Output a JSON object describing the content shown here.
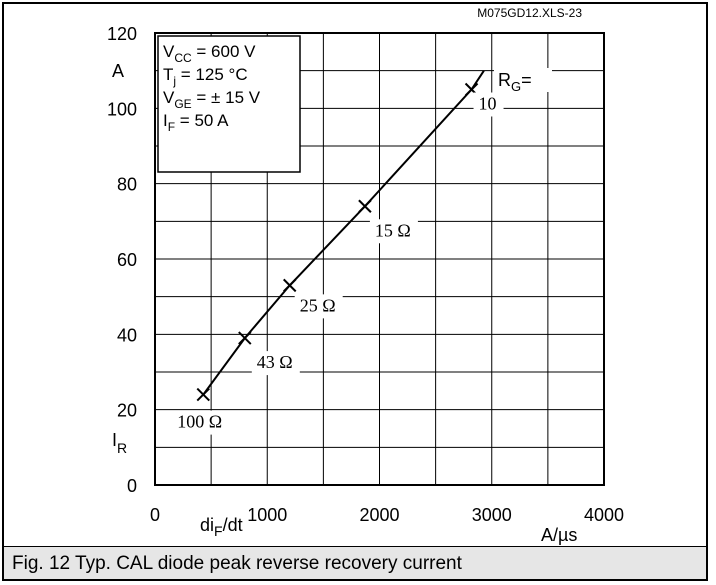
{
  "source_id": "M075GD12.XLS-23",
  "caption": "Fig. 12 Typ. CAL diode peak reverse recovery current",
  "conditions": [
    {
      "main": "V",
      "sub": "CC",
      "rest": " = 600 V"
    },
    {
      "main": "T",
      "sub": "j",
      "rest": " = 125 °C"
    },
    {
      "main": "V",
      "sub": "GE",
      "rest": " = ± 15 V"
    },
    {
      "main": "I",
      "sub": "F",
      "rest": " = 50 A"
    }
  ],
  "rg_label": {
    "main": "R",
    "sub": "G",
    "rest": "="
  },
  "chart_data": {
    "type": "line",
    "x_label_main": "di",
    "x_label_sub": "F",
    "x_label_rest": "/dt",
    "x_unit": "A/µs",
    "y_label_main": "I",
    "y_label_sub": "R",
    "y_unit": "A",
    "xlim": [
      0,
      4000
    ],
    "ylim": [
      0,
      120
    ],
    "x_ticks": [
      0,
      1000,
      2000,
      3000,
      4000
    ],
    "y_ticks": [
      0,
      20,
      40,
      60,
      80,
      100,
      120
    ],
    "grid": true,
    "series": [
      {
        "values": [
          [
            430,
            24
          ],
          [
            800,
            39
          ],
          [
            1200,
            53
          ],
          [
            1870,
            74
          ],
          [
            2820,
            105
          ],
          [
            2930,
            110
          ]
        ],
        "markers": [
          {
            "x": 430,
            "y": 24,
            "label": "100 Ω"
          },
          {
            "x": 800,
            "y": 39,
            "label": "43 Ω"
          },
          {
            "x": 1200,
            "y": 53,
            "label": "25 Ω"
          },
          {
            "x": 1870,
            "y": 74,
            "label": "15 Ω"
          },
          {
            "x": 2820,
            "y": 105,
            "label": "10"
          }
        ]
      }
    ]
  }
}
